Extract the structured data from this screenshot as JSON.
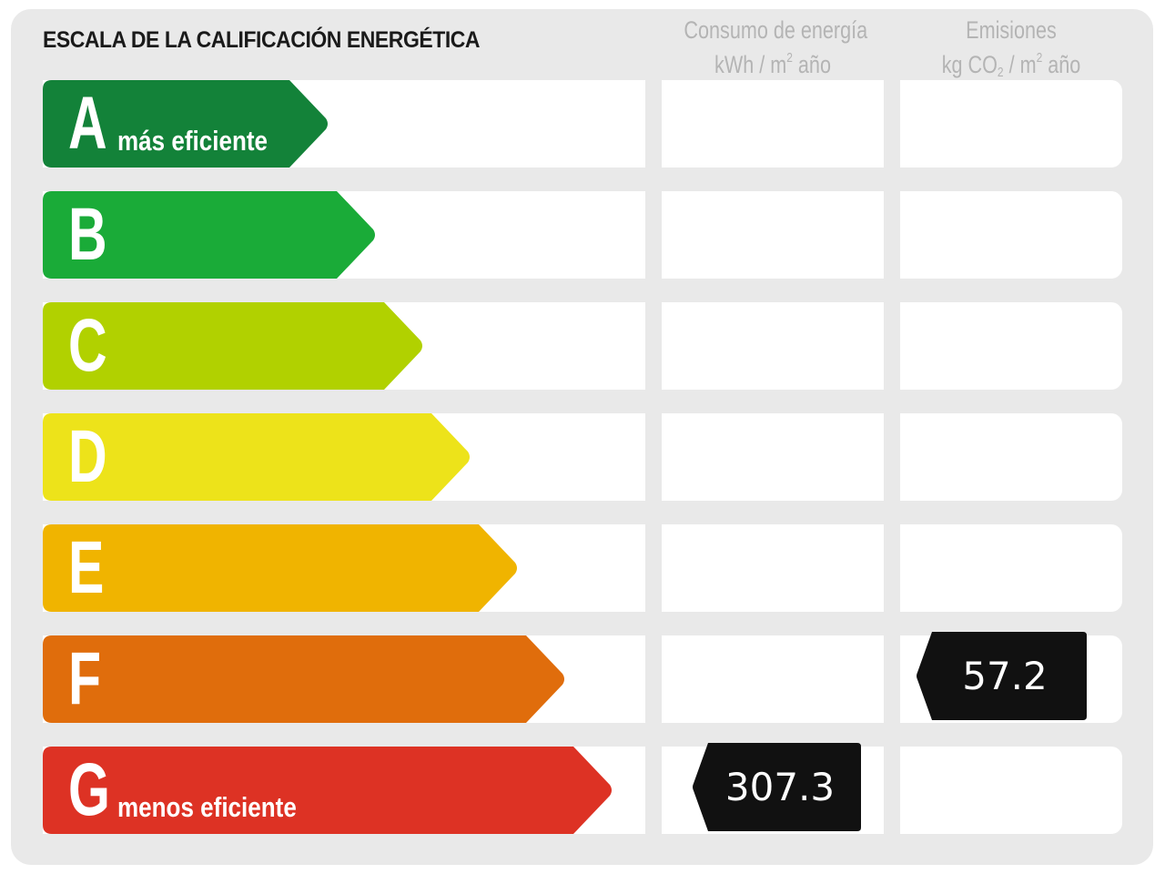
{
  "title": "ESCALA DE LA CALIFICACIÓN ENERGÉTICA",
  "columns": {
    "consumo": {
      "line1": "Consumo de energía",
      "unit_pre": "kWh / m",
      "unit_sup": "2",
      "unit_post": " año"
    },
    "emisiones": {
      "line1": "Emisiones",
      "unit_pre": "kg CO",
      "unit_sub": "2",
      "unit_mid": " / m",
      "unit_sup": "2",
      "unit_post": " año"
    }
  },
  "ratings": [
    {
      "letter": "A",
      "sublabel": "más eficiente",
      "color": "#138239"
    },
    {
      "letter": "B",
      "sublabel": "",
      "color": "#1aab38"
    },
    {
      "letter": "C",
      "sublabel": "",
      "color": "#b1d100"
    },
    {
      "letter": "D",
      "sublabel": "",
      "color": "#ede31a"
    },
    {
      "letter": "E",
      "sublabel": "",
      "color": "#f0b400"
    },
    {
      "letter": "F",
      "sublabel": "",
      "color": "#e06d0c"
    },
    {
      "letter": "G",
      "sublabel": "menos eficiente",
      "color": "#dd3224"
    }
  ],
  "result": {
    "consumo": {
      "value": "307.3",
      "rating": "G"
    },
    "emisiones": {
      "value": "57.2",
      "rating": "F"
    }
  },
  "indicator_color": "#111111"
}
